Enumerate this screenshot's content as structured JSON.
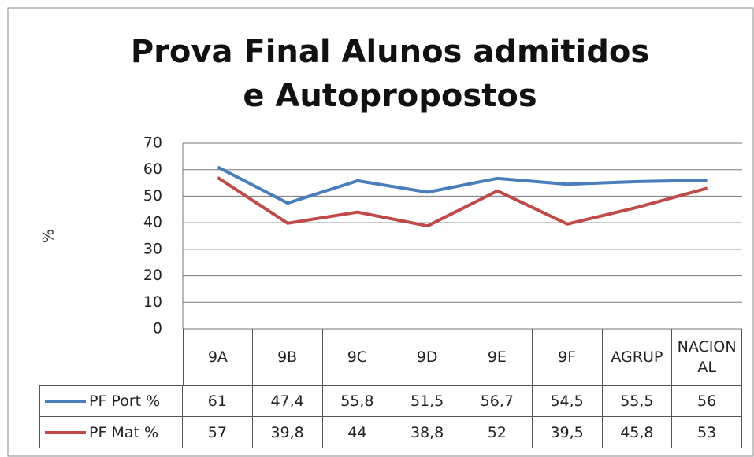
{
  "chart_data": {
    "type": "line",
    "title": "Prova Final Alunos admitidos e Autopropostos",
    "y_label": "%",
    "categories": [
      "9A",
      "9B",
      "9C",
      "9D",
      "9E",
      "9F",
      "AGRUP",
      "NACIONAL"
    ],
    "series": [
      {
        "name": "PF Port %",
        "color": "#4a7ebb",
        "values": [
          61,
          47.4,
          55.8,
          51.5,
          56.7,
          54.5,
          55.5,
          56
        ],
        "value_labels": [
          "61",
          "47,4",
          "55,8",
          "51,5",
          "56,7",
          "54,5",
          "55,5",
          "56"
        ]
      },
      {
        "name": "PF Mat %",
        "color": "#be4b48",
        "values": [
          57,
          39.8,
          44,
          38.8,
          52,
          39.5,
          45.8,
          53
        ],
        "value_labels": [
          "57",
          "39,8",
          "44",
          "38,8",
          "52",
          "39,5",
          "45,8",
          "53"
        ]
      }
    ],
    "ylim": [
      0,
      70
    ],
    "yticks": [
      0,
      10,
      20,
      30,
      40,
      50,
      60,
      70
    ],
    "grid": true
  }
}
